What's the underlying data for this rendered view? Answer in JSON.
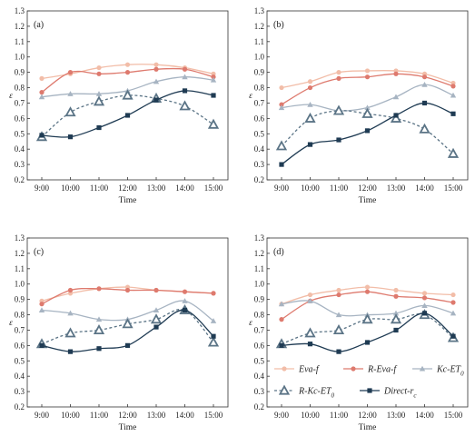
{
  "chart_data": [
    {
      "type": "line",
      "panel_label": "(a)",
      "xlabel": "Time",
      "ylabel": "ε",
      "categories": [
        "9:00",
        "10:00",
        "11:00",
        "12:00",
        "13:00",
        "14:00",
        "15:00"
      ],
      "ylim": [
        0.2,
        1.3
      ],
      "yticks": [
        "0.2",
        "0.3",
        "0.4",
        "0.5",
        "0.6",
        "0.7",
        "0.8",
        "0.9",
        "1.0",
        "1.1",
        "1.2",
        "1.3"
      ],
      "series": [
        {
          "key": "eva",
          "values": [
            0.86,
            0.89,
            0.93,
            0.95,
            0.95,
            0.93,
            0.89
          ]
        },
        {
          "key": "reva",
          "values": [
            0.77,
            0.9,
            0.89,
            0.9,
            0.92,
            0.92,
            0.87
          ]
        },
        {
          "key": "kc",
          "values": [
            0.74,
            0.76,
            0.76,
            0.78,
            0.84,
            0.87,
            0.85
          ]
        },
        {
          "key": "rkc",
          "values": [
            0.48,
            0.64,
            0.71,
            0.75,
            0.73,
            0.68,
            0.56
          ]
        },
        {
          "key": "direct",
          "values": [
            0.49,
            0.48,
            0.54,
            0.62,
            0.72,
            0.78,
            0.75
          ]
        }
      ]
    },
    {
      "type": "line",
      "panel_label": "(b)",
      "xlabel": "Time",
      "ylabel": "ε",
      "categories": [
        "9:00",
        "10:00",
        "11:00",
        "12:00",
        "13:00",
        "14:00",
        "15:00"
      ],
      "ylim": [
        0.2,
        1.3
      ],
      "yticks": [
        "0.2",
        "0.3",
        "0.4",
        "0.5",
        "0.6",
        "0.7",
        "0.8",
        "0.9",
        "1.0",
        "1.1",
        "1.2",
        "1.3"
      ],
      "series": [
        {
          "key": "eva",
          "values": [
            0.8,
            0.84,
            0.9,
            0.91,
            0.91,
            0.89,
            0.83
          ]
        },
        {
          "key": "reva",
          "values": [
            0.69,
            0.8,
            0.86,
            0.87,
            0.89,
            0.87,
            0.81
          ]
        },
        {
          "key": "kc",
          "values": [
            0.67,
            0.69,
            0.65,
            0.67,
            0.74,
            0.82,
            0.75
          ]
        },
        {
          "key": "rkc",
          "values": [
            0.42,
            0.6,
            0.65,
            0.63,
            0.6,
            0.53,
            0.37
          ]
        },
        {
          "key": "direct",
          "values": [
            0.3,
            0.43,
            0.46,
            0.52,
            0.62,
            0.7,
            0.63
          ]
        }
      ]
    },
    {
      "type": "line",
      "panel_label": "(c)",
      "xlabel": "Time",
      "ylabel": "ε",
      "categories": [
        "9:00",
        "10:00",
        "11:00",
        "12:00",
        "13:00",
        "14:00",
        "15:00"
      ],
      "ylim": [
        0.2,
        1.3
      ],
      "yticks": [
        "0.2",
        "0.3",
        "0.4",
        "0.5",
        "0.6",
        "0.7",
        "0.8",
        "0.9",
        "1.0",
        "1.1",
        "1.2",
        "1.3"
      ],
      "series": [
        {
          "key": "eva",
          "values": [
            0.89,
            0.94,
            0.97,
            0.98,
            0.96,
            0.95,
            0.94
          ]
        },
        {
          "key": "reva",
          "values": [
            0.87,
            0.96,
            0.97,
            0.96,
            0.96,
            0.95,
            0.94
          ]
        },
        {
          "key": "kc",
          "values": [
            0.83,
            0.81,
            0.77,
            0.77,
            0.83,
            0.89,
            0.76
          ]
        },
        {
          "key": "rkc",
          "values": [
            0.61,
            0.68,
            0.7,
            0.74,
            0.77,
            0.83,
            0.62
          ]
        },
        {
          "key": "direct",
          "values": [
            0.6,
            0.56,
            0.58,
            0.6,
            0.72,
            0.83,
            0.66
          ]
        }
      ]
    },
    {
      "type": "line",
      "panel_label": "(d)",
      "xlabel": "Time",
      "ylabel": "ε",
      "categories": [
        "9:00",
        "10:00",
        "11:00",
        "12:00",
        "13:00",
        "14:00",
        "15:00"
      ],
      "ylim": [
        0.2,
        1.3
      ],
      "yticks": [
        "0.2",
        "0.3",
        "0.4",
        "0.5",
        "0.6",
        "0.7",
        "0.8",
        "0.9",
        "1.0",
        "1.1",
        "1.2",
        "1.3"
      ],
      "series": [
        {
          "key": "eva",
          "values": [
            0.87,
            0.93,
            0.96,
            0.98,
            0.96,
            0.94,
            0.93
          ]
        },
        {
          "key": "reva",
          "values": [
            0.77,
            0.89,
            0.93,
            0.95,
            0.92,
            0.91,
            0.88
          ]
        },
        {
          "key": "kc",
          "values": [
            0.87,
            0.89,
            0.8,
            0.8,
            0.81,
            0.86,
            0.81
          ]
        },
        {
          "key": "rkc",
          "values": [
            0.61,
            0.68,
            0.7,
            0.77,
            0.77,
            0.8,
            0.65
          ]
        },
        {
          "key": "direct",
          "values": [
            0.6,
            0.61,
            0.56,
            0.62,
            0.7,
            0.81,
            0.66
          ]
        }
      ]
    }
  ],
  "legend": {
    "placement": "panel-d-lower-right",
    "entries": [
      {
        "key": "eva",
        "label": "Eva-f"
      },
      {
        "key": "reva",
        "label": "R-Eva-f"
      },
      {
        "key": "kc",
        "label": "Kc-ET0"
      },
      {
        "key": "rkc",
        "label": "R-Kc-ET0"
      },
      {
        "key": "direct",
        "label": "Direct-rc"
      }
    ]
  },
  "series_styles": {
    "eva": {
      "color": "#f2bda8",
      "marker": "circle",
      "dash": "solid"
    },
    "reva": {
      "color": "#de7a6e",
      "marker": "circle",
      "dash": "solid"
    },
    "kc": {
      "color": "#a7b4c2",
      "marker": "triangle",
      "dash": "solid"
    },
    "rkc": {
      "color": "#5b7486",
      "marker": "open-triangle",
      "dash": "dashed"
    },
    "direct": {
      "color": "#1f3b53",
      "marker": "square",
      "dash": "solid"
    }
  }
}
